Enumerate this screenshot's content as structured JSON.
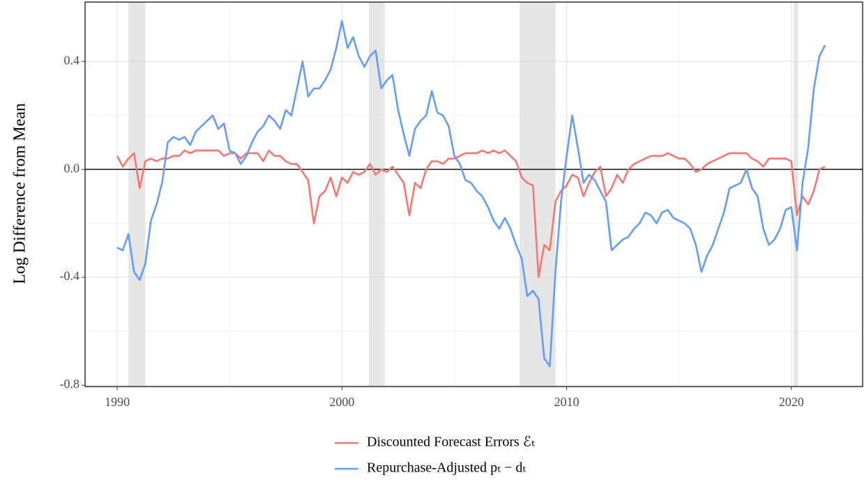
{
  "chart_data": {
    "type": "line",
    "ylabel": "Log Difference from Mean",
    "xlim": [
      1988.57,
      2023.17
    ],
    "ylim": [
      -0.805,
      0.62
    ],
    "xticks": [
      1990,
      2000,
      2010,
      2020
    ],
    "yticks": [
      0.4,
      {
        "value": 0,
        "label": "0.0"
      },
      -0.4,
      -0.8
    ],
    "x_minor_grid": [
      1995,
      2005,
      2015
    ],
    "y_minor_grid": [
      0.2,
      -0.2,
      -0.6
    ],
    "grid": true,
    "hline": 0,
    "shaded_x": [
      [
        1990.5,
        1991.25
      ],
      [
        2001.2,
        2001.9
      ],
      [
        2007.9,
        2009.5
      ],
      [
        2020.1,
        2020.3
      ]
    ],
    "legend": "bottom",
    "x": [
      1990,
      1990.25,
      1990.5,
      1990.75,
      1991,
      1991.25,
      1991.5,
      1991.75,
      1992,
      1992.25,
      1992.5,
      1992.75,
      1993,
      1993.25,
      1993.5,
      1993.75,
      1994,
      1994.25,
      1994.5,
      1994.75,
      1995,
      1995.25,
      1995.5,
      1995.75,
      1996,
      1996.25,
      1996.5,
      1996.75,
      1997,
      1997.25,
      1997.5,
      1997.75,
      1998,
      1998.25,
      1998.5,
      1998.75,
      1999,
      1999.25,
      1999.5,
      1999.75,
      2000,
      2000.25,
      2000.5,
      2000.75,
      2001,
      2001.25,
      2001.5,
      2001.75,
      2002,
      2002.25,
      2002.5,
      2002.75,
      2003,
      2003.25,
      2003.5,
      2003.75,
      2004,
      2004.25,
      2004.5,
      2004.75,
      2005,
      2005.25,
      2005.5,
      2005.75,
      2006,
      2006.25,
      2006.5,
      2006.75,
      2007,
      2007.25,
      2007.5,
      2007.75,
      2008,
      2008.25,
      2008.5,
      2008.75,
      2009,
      2009.25,
      2009.5,
      2009.75,
      2010,
      2010.25,
      2010.5,
      2010.75,
      2011,
      2011.25,
      2011.5,
      2011.75,
      2012,
      2012.25,
      2012.5,
      2012.75,
      2013,
      2013.25,
      2013.5,
      2013.75,
      2014,
      2014.25,
      2014.5,
      2014.75,
      2015,
      2015.25,
      2015.5,
      2015.75,
      2016,
      2016.25,
      2016.5,
      2016.75,
      2017,
      2017.25,
      2017.5,
      2017.75,
      2018,
      2018.25,
      2018.5,
      2018.75,
      2019,
      2019.25,
      2019.5,
      2019.75,
      2020,
      2020.25,
      2020.5,
      2020.75,
      2021,
      2021.25,
      2021.5
    ],
    "series": [
      {
        "name": "Discounted Forecast Errors ℰₜ",
        "color": "#F8766D",
        "values": [
          0.05,
          0.01,
          0.04,
          0.06,
          -0.07,
          0.03,
          0.04,
          0.03,
          0.04,
          0.04,
          0.05,
          0.05,
          0.07,
          0.06,
          0.07,
          0.07,
          0.07,
          0.07,
          0.07,
          0.05,
          0.06,
          0.06,
          0.04,
          0.06,
          0.06,
          0.06,
          0.03,
          0.07,
          0.05,
          0.05,
          0.03,
          0.02,
          0.02,
          -0.01,
          -0.04,
          -0.2,
          -0.1,
          -0.08,
          -0.03,
          -0.1,
          -0.03,
          -0.05,
          -0.01,
          -0.02,
          -0.01,
          0.02,
          -0.02,
          0,
          -0.01,
          0.01,
          -0.02,
          -0.05,
          -0.17,
          -0.05,
          -0.07,
          0,
          0.03,
          0.03,
          0.02,
          0.04,
          0.04,
          0.05,
          0.06,
          0.06,
          0.06,
          0.07,
          0.06,
          0.07,
          0.06,
          0.07,
          0.05,
          0.03,
          -0.03,
          -0.05,
          -0.06,
          -0.4,
          -0.28,
          -0.3,
          -0.12,
          -0.08,
          -0.06,
          -0.02,
          -0.03,
          -0.1,
          -0.05,
          -0.01,
          0.01,
          -0.1,
          -0.07,
          -0.02,
          -0.05,
          0,
          0.02,
          0.03,
          0.04,
          0.05,
          0.05,
          0.05,
          0.06,
          0.05,
          0.04,
          0.04,
          0.02,
          -0.01,
          0,
          0.02,
          0.03,
          0.04,
          0.05,
          0.06,
          0.06,
          0.06,
          0.06,
          0.04,
          0.03,
          0.01,
          0.04,
          0.04,
          0.04,
          0.04,
          0.03,
          -0.17,
          -0.1,
          -0.13,
          -0.08,
          0,
          0.01
        ]
      },
      {
        "name": "Repurchase-Adjusted pₜ − dₜ",
        "color": "#619CFF",
        "values": [
          -0.29,
          -0.3,
          -0.24,
          -0.38,
          -0.41,
          -0.35,
          -0.19,
          -0.13,
          -0.05,
          0.1,
          0.12,
          0.11,
          0.12,
          0.09,
          0.14,
          0.16,
          0.18,
          0.2,
          0.15,
          0.17,
          0.07,
          0.06,
          0.02,
          0.05,
          0.1,
          0.14,
          0.16,
          0.2,
          0.18,
          0.15,
          0.22,
          0.2,
          0.3,
          0.4,
          0.27,
          0.3,
          0.3,
          0.33,
          0.37,
          0.45,
          0.55,
          0.45,
          0.49,
          0.42,
          0.38,
          0.42,
          0.44,
          0.3,
          0.33,
          0.35,
          0.22,
          0.13,
          0.05,
          0.15,
          0.18,
          0.2,
          0.29,
          0.21,
          0.2,
          0.16,
          0.05,
          0.02,
          -0.04,
          -0.05,
          -0.08,
          -0.1,
          -0.14,
          -0.19,
          -0.22,
          -0.18,
          -0.22,
          -0.28,
          -0.33,
          -0.47,
          -0.45,
          -0.48,
          -0.7,
          -0.73,
          -0.38,
          -0.12,
          0.05,
          0.2,
          0.08,
          -0.05,
          -0.02,
          -0.04,
          -0.08,
          -0.12,
          -0.3,
          -0.28,
          -0.26,
          -0.25,
          -0.22,
          -0.2,
          -0.16,
          -0.17,
          -0.2,
          -0.16,
          -0.15,
          -0.18,
          -0.19,
          -0.2,
          -0.22,
          -0.28,
          -0.38,
          -0.32,
          -0.28,
          -0.22,
          -0.16,
          -0.07,
          -0.06,
          -0.05,
          0,
          -0.07,
          -0.1,
          -0.22,
          -0.28,
          -0.26,
          -0.22,
          -0.15,
          -0.14,
          -0.3,
          -0.05,
          0.08,
          0.3,
          0.42,
          0.46
        ]
      }
    ]
  }
}
